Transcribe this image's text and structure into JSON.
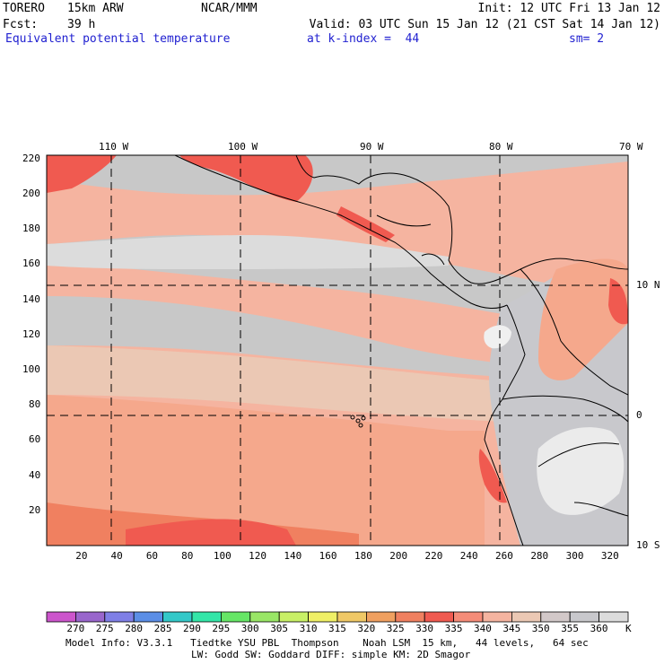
{
  "header": {
    "model": "TORERO",
    "resolution": "15km ARW",
    "org": "NCAR/MMM",
    "init": "Init: 12 UTC Fri 13 Jan 12",
    "fcst_label": "Fcst:",
    "fcst_value": "39 h",
    "valid": "Valid: 03 UTC Sun 15 Jan 12 (21 CST Sat 14 Jan 12)",
    "field": "Equivalent potential temperature",
    "level": "at k-index =  44",
    "smoothing": "sm= 2"
  },
  "map": {
    "top_lon_labels": [
      "110 W",
      "100 W",
      "90 W",
      "80 W",
      "70 W"
    ],
    "right_lat_labels": [
      "10 N",
      "0",
      "10 S"
    ],
    "left_grid_labels": [
      "220",
      "200",
      "180",
      "160",
      "140",
      "120",
      "100",
      "80",
      "60",
      "40",
      "20"
    ],
    "bottom_grid_labels": [
      "20",
      "40",
      "60",
      "80",
      "100",
      "120",
      "140",
      "160",
      "180",
      "200",
      "220",
      "240",
      "260",
      "280",
      "300",
      "320"
    ],
    "grid_x_range": [
      0,
      330
    ],
    "grid_y_range": [
      0,
      222
    ]
  },
  "colorbar": {
    "labels": [
      "270",
      "275",
      "280",
      "285",
      "290",
      "295",
      "300",
      "305",
      "310",
      "315",
      "320",
      "325",
      "330",
      "335",
      "340",
      "345",
      "350",
      "355",
      "360"
    ],
    "unit": "K",
    "colors": [
      "#cc55cc",
      "#9966cc",
      "#7f7fe6",
      "#5b8ee6",
      "#33c8c8",
      "#33e6a8",
      "#66e666",
      "#99e666",
      "#c8f066",
      "#f0f066",
      "#f0c866",
      "#f0a060",
      "#f08060",
      "#f05a50",
      "#f58c78",
      "#f5b4a0",
      "#ebc8b4",
      "#d2c8c8",
      "#c8c8cc",
      "#dcdcdc"
    ]
  },
  "footer": {
    "line1": "Model Info: V3.3.1   Tiedtke YSU PBL  Thompson    Noah LSM  15 km,   44 levels,   64 sec",
    "line2": "LW: Godd SW: Goddard DIFF: simple KM: 2D Smagor"
  }
}
